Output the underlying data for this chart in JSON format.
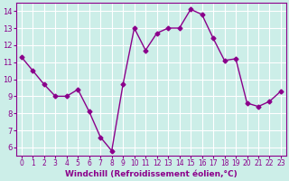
{
  "x": [
    0,
    1,
    2,
    3,
    4,
    5,
    6,
    7,
    8,
    9,
    10,
    11,
    12,
    13,
    14,
    15,
    16,
    17,
    18,
    19,
    20,
    21,
    22,
    23
  ],
  "y": [
    11.3,
    10.5,
    9.7,
    9.0,
    9.0,
    9.4,
    8.1,
    6.6,
    5.8,
    9.7,
    13.0,
    11.7,
    12.7,
    13.0,
    13.0,
    14.1,
    13.8,
    12.4,
    11.1,
    11.2,
    8.6,
    8.4,
    8.7,
    9.3
  ],
  "line_color": "#8B008B",
  "marker": "D",
  "marker_size": 2.5,
  "bg_color": "#cceee8",
  "grid_color": "#ffffff",
  "xlabel": "Windchill (Refroidissement éolien,°C)",
  "tick_color": "#8B008B",
  "spine_color": "#8B008B",
  "ylim": [
    5.5,
    14.5
  ],
  "yticks": [
    6,
    7,
    8,
    9,
    10,
    11,
    12,
    13,
    14
  ],
  "xticks": [
    0,
    1,
    2,
    3,
    4,
    5,
    6,
    7,
    8,
    9,
    10,
    11,
    12,
    13,
    14,
    15,
    16,
    17,
    18,
    19,
    20,
    21,
    22,
    23
  ],
  "xlabel_fontsize": 6.5,
  "tick_fontsize_x": 5.5,
  "tick_fontsize_y": 6.0
}
